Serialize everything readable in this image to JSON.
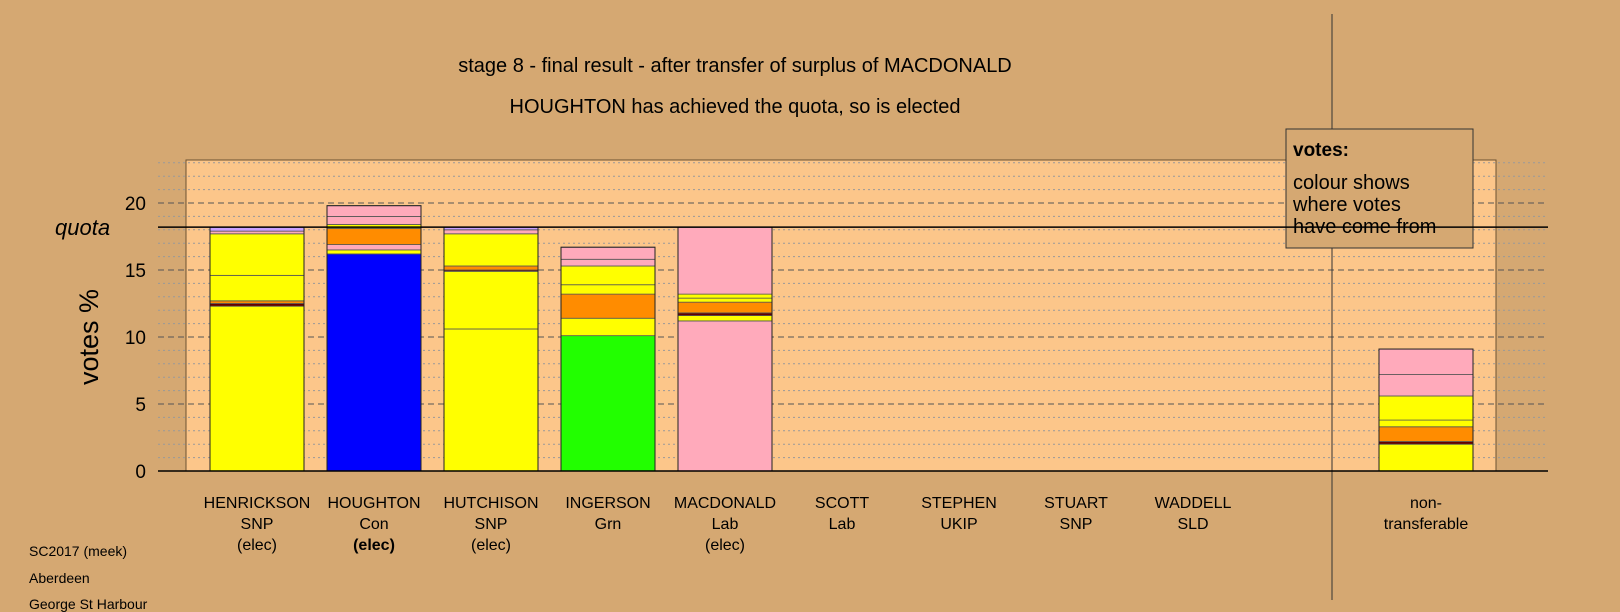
{
  "chart_data": {
    "type": "bar",
    "stacked": true,
    "title": "stage 8 - final result - after transfer of surplus of MACDONALD",
    "subtitle": "HOUGHTON has achieved the quota, so is elected",
    "ylabel": "votes %",
    "ylim": [
      0,
      23
    ],
    "yticks": [
      0,
      5,
      10,
      15,
      20
    ],
    "quota": 18.2,
    "quota_label": "quota",
    "grid": true,
    "legend": {
      "position": "top-right",
      "title": "votes:",
      "lines": [
        "colour shows",
        "where votes",
        "have come from"
      ]
    },
    "colors": {
      "SNP": "#ffff00",
      "Con": "#0000ff",
      "Lab": "#ffaabb",
      "Grn": "#22ff00",
      "UKIP": "#ff8c00",
      "SLD": "#ff8c00",
      "Nat": "#660000",
      "Oth": "#c8a0ff"
    },
    "candidates": [
      {
        "name": "HENRICKSON",
        "party": "SNP",
        "status": "(elec)",
        "status_bold": false,
        "segments": [
          {
            "color": "#ffff00",
            "value": 12.3
          },
          {
            "color": "#660000",
            "value": 0.2
          },
          {
            "color": "#ff8c00",
            "value": 0.2
          },
          {
            "color": "#ffff00",
            "value": 1.9
          },
          {
            "color": "#ffff00",
            "value": 3.1
          },
          {
            "color": "#ffaabb",
            "value": 0.2
          },
          {
            "color": "#c8a0ff",
            "value": 0.3
          }
        ]
      },
      {
        "name": "HOUGHTON",
        "party": "Con",
        "status": "(elec)",
        "status_bold": true,
        "segments": [
          {
            "color": "#0000ff",
            "value": 16.2
          },
          {
            "color": "#ffff00",
            "value": 0.3
          },
          {
            "color": "#ffaabb",
            "value": 0.4
          },
          {
            "color": "#ff8c00",
            "value": 1.2
          },
          {
            "color": "#ffff00",
            "value": 0.3
          },
          {
            "color": "#ffaabb",
            "value": 0.6
          },
          {
            "color": "#ffaabb",
            "value": 0.8
          }
        ]
      },
      {
        "name": "HUTCHISON",
        "party": "SNP",
        "status": "(elec)",
        "status_bold": false,
        "segments": [
          {
            "color": "#ffff00",
            "value": 10.6
          },
          {
            "color": "#ffff00",
            "value": 4.3
          },
          {
            "color": "#660000",
            "value": 0.1
          },
          {
            "color": "#ff8c00",
            "value": 0.3
          },
          {
            "color": "#ffff00",
            "value": 2.4
          },
          {
            "color": "#ffaabb",
            "value": 0.3
          },
          {
            "color": "#c8a0ff",
            "value": 0.2
          }
        ]
      },
      {
        "name": "INGERSON",
        "party": "Grn",
        "status": "",
        "status_bold": false,
        "segments": [
          {
            "color": "#22ff00",
            "value": 10.1
          },
          {
            "color": "#ffff00",
            "value": 1.3
          },
          {
            "color": "#ff8c00",
            "value": 1.8
          },
          {
            "color": "#ffff00",
            "value": 0.7
          },
          {
            "color": "#ffff00",
            "value": 1.4
          },
          {
            "color": "#ffaabb",
            "value": 0.5
          },
          {
            "color": "#ffaabb",
            "value": 0.9
          }
        ]
      },
      {
        "name": "MACDONALD",
        "party": "Lab",
        "status": "(elec)",
        "status_bold": false,
        "segments": [
          {
            "color": "#ffaabb",
            "value": 11.2
          },
          {
            "color": "#ffff00",
            "value": 0.4
          },
          {
            "color": "#660000",
            "value": 0.2
          },
          {
            "color": "#ff8c00",
            "value": 0.8
          },
          {
            "color": "#ffff00",
            "value": 0.3
          },
          {
            "color": "#ffff00",
            "value": 0.3
          },
          {
            "color": "#ffaabb",
            "value": 5.0
          }
        ]
      },
      {
        "name": "SCOTT",
        "party": "Lab",
        "status": "",
        "status_bold": false,
        "segments": []
      },
      {
        "name": "STEPHEN",
        "party": "UKIP",
        "status": "",
        "status_bold": false,
        "segments": []
      },
      {
        "name": "STUART",
        "party": "SNP",
        "status": "",
        "status_bold": false,
        "segments": []
      },
      {
        "name": "WADDELL",
        "party": "SLD",
        "status": "",
        "status_bold": false,
        "segments": []
      }
    ],
    "nontransferable": {
      "label_line1": "non-",
      "label_line2": "transferable",
      "segments": [
        {
          "color": "#ffff00",
          "value": 2.0
        },
        {
          "color": "#660000",
          "value": 0.2
        },
        {
          "color": "#ff8c00",
          "value": 1.1
        },
        {
          "color": "#ffff00",
          "value": 0.5
        },
        {
          "color": "#ffff00",
          "value": 1.8
        },
        {
          "color": "#ffaabb",
          "value": 1.6
        },
        {
          "color": "#ffaabb",
          "value": 1.9
        }
      ]
    }
  },
  "footer": {
    "line1": "SC2017 (meek)",
    "line2": "Aberdeen",
    "line3": "George St Harbour"
  }
}
